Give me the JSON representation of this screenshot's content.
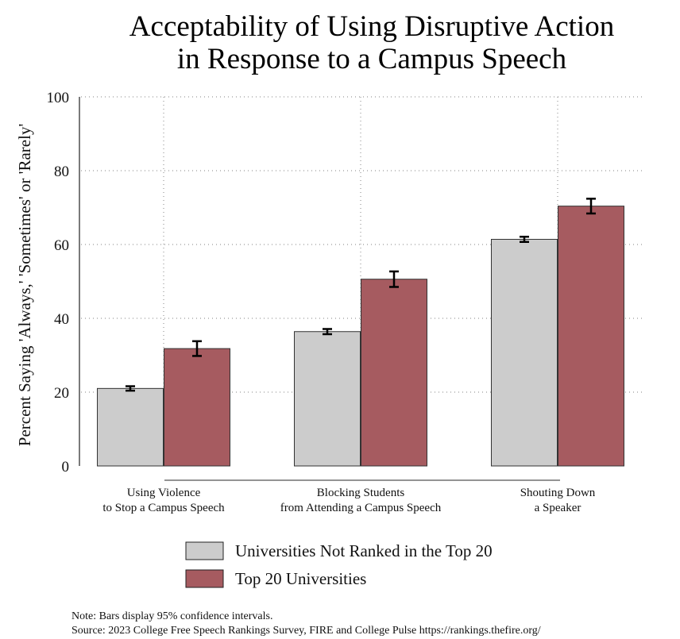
{
  "chart_data": {
    "type": "bar",
    "title_lines": [
      "Acceptability of Using Disruptive Action",
      "in Response to a Campus Speech"
    ],
    "ylabel": "Percent Saying 'Always,' 'Sometimes' or 'Rarely'",
    "xlabel": "",
    "ylim": [
      0,
      100
    ],
    "yticks": [
      "0",
      "20",
      "40",
      "60",
      "80",
      "100"
    ],
    "categories": [
      [
        "Using Violence",
        "to Stop a Campus Speech"
      ],
      [
        "Blocking Students",
        "from Attending a Campus Speech"
      ],
      [
        "Shouting Down",
        "a Speaker"
      ]
    ],
    "series": [
      {
        "name": "Universities Not Ranked in the Top 20",
        "color": "#cccccc",
        "values": [
          21.0,
          36.4,
          61.4
        ],
        "ci": [
          [
            20.4,
            21.6
          ],
          [
            35.7,
            37.1
          ],
          [
            60.7,
            62.1
          ]
        ]
      },
      {
        "name": "Top 20 Universities",
        "color": "#a65b60",
        "values": [
          31.8,
          50.6,
          70.4
        ],
        "ci": [
          [
            29.8,
            33.8
          ],
          [
            48.5,
            52.7
          ],
          [
            68.4,
            72.4
          ]
        ]
      }
    ],
    "grid": true,
    "legend_position": "bottom"
  },
  "notes": {
    "line1": "Note: Bars display 95% confidence intervals.",
    "line2": "Source: 2023 College Free Speech Rankings Survey, FIRE and College Pulse https://rankings.thefire.org/"
  }
}
